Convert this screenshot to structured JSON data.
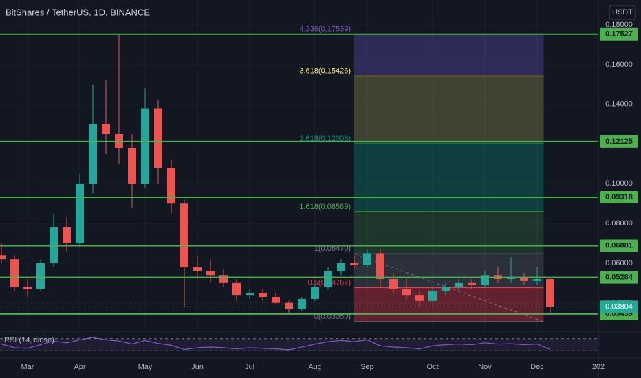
{
  "chart_data": {
    "type": "candlestick",
    "title": "BitShares / TetherUS, 1D, BINANCE",
    "currency": "USDT",
    "categories": [
      null,
      null,
      "Mar",
      null,
      null,
      null,
      "Apr",
      null,
      null,
      null,
      null,
      "May",
      null,
      null,
      null,
      "Jun",
      null,
      null,
      null,
      "Jul",
      null,
      null,
      null,
      null,
      "Aug",
      null,
      null,
      null,
      "Sep",
      null,
      null,
      null,
      null,
      "Oct",
      null,
      null,
      null,
      "Nov",
      null,
      null,
      null,
      "Dec",
      null
    ],
    "x_axis_end_label": "202",
    "open": [
      0.064,
      0.062,
      0.048,
      0.047,
      0.06,
      0.078,
      0.07,
      0.1,
      0.13,
      0.125,
      0.118,
      0.1,
      0.138,
      0.108,
      0.09,
      0.058,
      0.056,
      0.054,
      0.05,
      0.044,
      0.045,
      0.043,
      0.04,
      0.037,
      0.042,
      0.048,
      0.056,
      0.06,
      0.059,
      0.065,
      0.052,
      0.047,
      0.044,
      0.041,
      0.046,
      0.048,
      0.05,
      0.049,
      0.054,
      0.052,
      0.053,
      0.051,
      0.052
    ],
    "high": [
      0.07,
      0.064,
      0.052,
      0.062,
      0.085,
      0.083,
      0.105,
      0.15,
      0.152,
      0.175,
      0.125,
      0.148,
      0.142,
      0.112,
      0.092,
      0.064,
      0.062,
      0.057,
      0.052,
      0.047,
      0.047,
      0.045,
      0.041,
      0.043,
      0.05,
      0.058,
      0.062,
      0.064,
      0.067,
      0.067,
      0.055,
      0.053,
      0.046,
      0.048,
      0.05,
      0.052,
      0.052,
      0.056,
      0.058,
      0.063,
      0.055,
      0.058,
      0.053
    ],
    "low": [
      0.06,
      0.046,
      0.043,
      0.046,
      0.058,
      0.066,
      0.068,
      0.095,
      0.115,
      0.11,
      0.088,
      0.098,
      0.1,
      0.085,
      0.038,
      0.052,
      0.05,
      0.048,
      0.041,
      0.042,
      0.041,
      0.039,
      0.035,
      0.036,
      0.041,
      0.047,
      0.054,
      0.057,
      0.058,
      0.048,
      0.045,
      0.042,
      0.038,
      0.04,
      0.044,
      0.046,
      0.047,
      0.048,
      0.05,
      0.05,
      0.049,
      0.049,
      0.035
    ],
    "close": [
      0.062,
      0.048,
      0.047,
      0.06,
      0.078,
      0.07,
      0.1,
      0.13,
      0.125,
      0.118,
      0.1,
      0.138,
      0.108,
      0.09,
      0.058,
      0.056,
      0.054,
      0.05,
      0.044,
      0.045,
      0.043,
      0.04,
      0.037,
      0.042,
      0.048,
      0.056,
      0.06,
      0.059,
      0.065,
      0.052,
      0.047,
      0.044,
      0.041,
      0.046,
      0.048,
      0.05,
      0.049,
      0.054,
      0.052,
      0.053,
      0.051,
      0.052,
      0.038
    ],
    "up_color": "#26a69a",
    "down_color": "#ef5350",
    "ylim": [
      0.0264,
      0.1925
    ],
    "yticks": [
      {
        "value": 0.18,
        "label": "0.18000"
      },
      {
        "value": 0.16,
        "label": "0.16000"
      },
      {
        "value": 0.14,
        "label": "0.14000"
      },
      {
        "value": 0.12,
        "label": "0.12000"
      },
      {
        "value": 0.1,
        "label": "0.10000"
      },
      {
        "value": 0.08,
        "label": "0.08000"
      },
      {
        "value": 0.06,
        "label": "0.06000"
      },
      {
        "value": 0.04,
        "label": "0.04000"
      }
    ],
    "grid": true,
    "levels": [
      0.17527,
      0.12125,
      0.09318,
      0.06881,
      0.05284,
      0.03439
    ],
    "level_color": "#4caf50",
    "last_price": 0.03804,
    "last_price_color": "#22ab94",
    "fib": {
      "start": 27,
      "end": 41.5,
      "levels": [
        {
          "value": 0.0305,
          "label": "0(0.03050)",
          "color": "#787b86"
        },
        {
          "value": 0.04767,
          "label": "0.5(0.04767)",
          "color": "#f23645"
        },
        {
          "value": 0.0647,
          "label": "1(0.06470)",
          "color": "#787b86"
        },
        {
          "value": 0.08589,
          "label": "1.618(0.08589)",
          "color": "#4caf50"
        },
        {
          "value": 0.12008,
          "label": "2.618(0.12008)",
          "color": "#089981"
        },
        {
          "value": 0.15426,
          "label": "3.618(0.15426)",
          "color": "#f7e67a"
        },
        {
          "value": 0.17539,
          "label": "4.236(0.17539)",
          "color": "#7e57c2"
        }
      ],
      "band_colors": [
        "rgba(242,54,69,0.35)",
        "rgba(120,123,134,0.25)",
        "rgba(76,175,80,0.2)",
        "rgba(8,153,129,0.3)",
        "rgba(150,150,80,0.35)",
        "rgba(100,80,190,0.35)"
      ]
    },
    "rsi": {
      "label": "RSI (14, close)",
      "color": "#7e57c2",
      "ylim": [
        10,
        90
      ],
      "bands": [
        70,
        30
      ],
      "values": [
        52,
        40,
        38,
        50,
        62,
        56,
        66,
        74,
        66,
        62,
        52,
        64,
        54,
        48,
        34,
        40,
        42,
        40,
        36,
        40,
        38,
        36,
        33,
        42,
        52,
        60,
        64,
        60,
        66,
        46,
        42,
        40,
        36,
        46,
        50,
        52,
        50,
        56,
        52,
        53,
        50,
        52,
        34
      ]
    }
  }
}
